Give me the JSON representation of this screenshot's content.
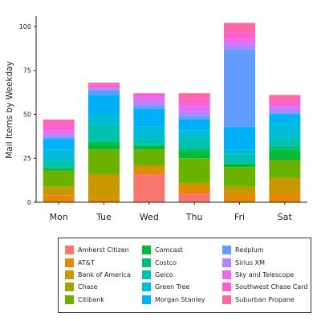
{
  "chart_data": {
    "type": "bar",
    "stacked": true,
    "xlabel": "",
    "ylabel": "Mail Items by Weekday",
    "ylim": [
      0,
      105
    ],
    "yticks": [
      0,
      25,
      50,
      75,
      100
    ],
    "grid": false,
    "legend_position": "bottom",
    "categories": [
      "Mon",
      "Tue",
      "Wed",
      "Thu",
      "Fri",
      "Sat"
    ],
    "series": [
      {
        "name": "Amherst Citizen",
        "color": "#F8766D",
        "values": [
          0,
          0,
          16,
          5,
          0,
          0
        ]
      },
      {
        "name": "AT&T",
        "color": "#E58700",
        "values": [
          4,
          2,
          2,
          3,
          5,
          5
        ]
      },
      {
        "name": "Bank of America",
        "color": "#C99800",
        "values": [
          4,
          14,
          3,
          3,
          3,
          8
        ]
      },
      {
        "name": "Chase",
        "color": "#A3A500",
        "values": [
          1,
          0,
          0,
          0,
          1,
          1
        ]
      },
      {
        "name": "Citibank",
        "color": "#6BB100",
        "values": [
          9,
          14,
          9,
          14,
          11,
          10
        ]
      },
      {
        "name": "Comcast",
        "color": "#00BA38",
        "values": [
          1,
          4,
          2,
          4,
          2,
          6
        ]
      },
      {
        "name": "Costco",
        "color": "#00BF7D",
        "values": [
          1,
          1,
          1,
          2,
          0,
          2
        ]
      },
      {
        "name": "Geico",
        "color": "#00C0AF",
        "values": [
          4,
          9,
          3,
          6,
          5,
          5
        ]
      },
      {
        "name": "Green Tree",
        "color": "#00BCD8",
        "values": [
          6,
          6,
          7,
          4,
          3,
          8
        ]
      },
      {
        "name": "Morgan Stanley",
        "color": "#00B0F6",
        "values": [
          6,
          11,
          10,
          6,
          13,
          5
        ]
      },
      {
        "name": "Redplum",
        "color": "#619CFF",
        "values": [
          1,
          3,
          2,
          2,
          44,
          1
        ]
      },
      {
        "name": "Sirius XM",
        "color": "#B983FF",
        "values": [
          2,
          1,
          3,
          3,
          3,
          3
        ]
      },
      {
        "name": "Sky and Telescope",
        "color": "#E76BF3",
        "values": [
          2,
          0,
          2,
          3,
          3,
          1
        ]
      },
      {
        "name": "Southwest Chase Card",
        "color": "#FD61D1",
        "values": [
          4,
          2,
          2,
          4,
          4,
          3
        ]
      },
      {
        "name": "Suburban Propane",
        "color": "#FF67A4",
        "values": [
          2,
          1,
          0,
          3,
          5,
          3
        ]
      }
    ]
  }
}
